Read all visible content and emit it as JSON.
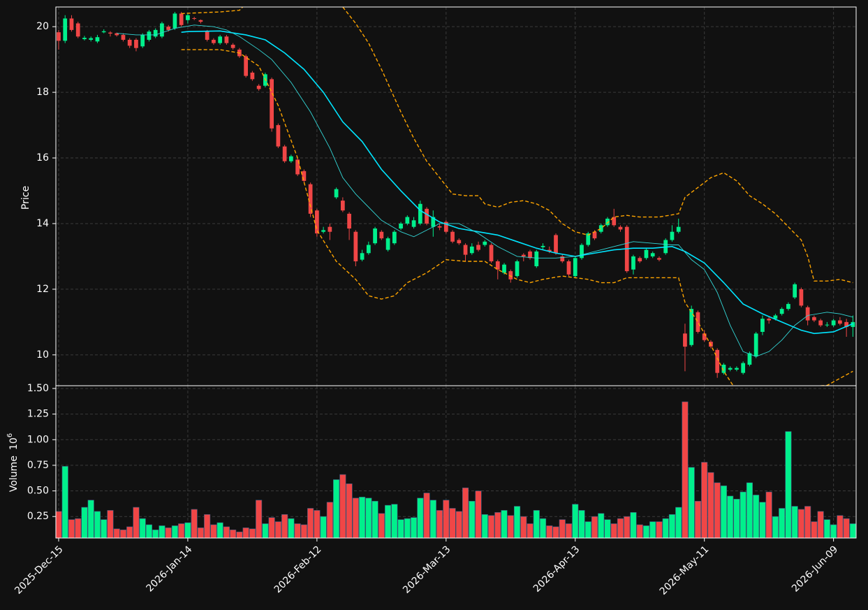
{
  "chart_data": [
    {
      "type": "candlestick",
      "ylabel": "Price",
      "up_color": "#00f08c",
      "down_color": "#f04646",
      "grid": true,
      "xlim": [
        -0.43,
        123.5
      ],
      "ylim": [
        9.06,
        20.6
      ],
      "yticks": [
        10,
        12,
        14,
        16,
        18,
        20
      ],
      "open": [
        19.83,
        19.57,
        20.25,
        20.1,
        19.62,
        19.6,
        19.55,
        19.83,
        19.82,
        19.8,
        19.75,
        19.6,
        19.6,
        19.4,
        19.6,
        19.7,
        19.7,
        20.0,
        19.95,
        20.4,
        20.2,
        20.26,
        20.2,
        19.85,
        19.6,
        19.5,
        19.7,
        19.45,
        19.3,
        19.1,
        18.6,
        18.2,
        18.2,
        18.4,
        17.0,
        16.35,
        15.9,
        15.95,
        15.6,
        15.2,
        14.4,
        13.75,
        13.9,
        14.8,
        14.7,
        14.3,
        13.75,
        12.9,
        13.1,
        13.4,
        13.75,
        13.2,
        13.4,
        13.85,
        14.0,
        13.9,
        14.0,
        14.45,
        13.9,
        13.92,
        14.05,
        13.75,
        13.5,
        13.35,
        13.1,
        13.35,
        13.35,
        13.35,
        12.85,
        12.5,
        12.55,
        12.4,
        13.05,
        13.15,
        12.7,
        13.28,
        13.2,
        13.65,
        13.0,
        12.85,
        12.4,
        12.95,
        13.35,
        13.75,
        13.75,
        13.95,
        14.2,
        13.9,
        13.9,
        12.6,
        12.95,
        12.95,
        13.0,
        12.95,
        13.1,
        13.5,
        13.75,
        10.65,
        10.3,
        11.3,
        10.65,
        10.4,
        10.15,
        9.45,
        9.55,
        9.55,
        9.45,
        9.7,
        9.95,
        10.7,
        11.1,
        11.1,
        11.25,
        11.4,
        11.75,
        12.0,
        11.45,
        11.15,
        11.05,
        10.9,
        10.9,
        11.05,
        11.0,
        10.85
      ],
      "high": [
        19.9,
        20.35,
        20.35,
        20.15,
        19.72,
        19.7,
        19.75,
        19.92,
        19.86,
        19.82,
        19.8,
        19.65,
        19.65,
        19.8,
        19.9,
        19.95,
        20.15,
        20.05,
        20.45,
        20.45,
        20.4,
        20.3,
        20.22,
        19.9,
        19.65,
        19.75,
        19.75,
        19.5,
        19.35,
        19.15,
        18.65,
        18.25,
        18.6,
        18.45,
        17.05,
        16.4,
        16.1,
        16.0,
        15.65,
        15.25,
        14.45,
        13.9,
        14.0,
        15.1,
        14.8,
        14.35,
        13.8,
        13.2,
        13.45,
        13.9,
        13.8,
        13.6,
        13.8,
        14.05,
        14.25,
        14.2,
        14.7,
        14.5,
        14.4,
        14.0,
        14.1,
        13.8,
        13.55,
        13.4,
        13.4,
        13.45,
        13.5,
        13.4,
        12.9,
        12.8,
        12.6,
        12.9,
        13.1,
        13.2,
        13.2,
        13.4,
        13.3,
        13.7,
        13.05,
        12.9,
        13.0,
        13.4,
        13.75,
        13.8,
        14.0,
        14.2,
        14.45,
        13.95,
        13.95,
        13.05,
        13.0,
        13.25,
        13.15,
        13.0,
        13.55,
        13.95,
        14.15,
        10.95,
        11.5,
        11.35,
        10.75,
        10.45,
        10.2,
        9.75,
        9.65,
        9.65,
        9.8,
        10.1,
        10.7,
        11.2,
        11.15,
        11.25,
        11.45,
        11.6,
        12.2,
        12.05,
        11.5,
        11.2,
        11.1,
        11.0,
        11.1,
        11.15,
        11.1,
        11.2
      ],
      "low": [
        19.3,
        19.5,
        19.85,
        19.65,
        19.58,
        19.55,
        19.5,
        19.8,
        19.7,
        19.7,
        19.55,
        19.35,
        19.25,
        19.35,
        19.55,
        19.65,
        19.65,
        19.85,
        19.9,
        20.0,
        20.1,
        20.2,
        20.1,
        19.55,
        19.45,
        19.45,
        19.45,
        19.3,
        19.05,
        18.45,
        18.35,
        18.05,
        18.15,
        16.8,
        16.3,
        15.85,
        15.85,
        15.45,
        15.25,
        14.2,
        13.6,
        13.7,
        13.5,
        14.75,
        14.35,
        13.5,
        12.7,
        12.85,
        13.05,
        13.35,
        13.5,
        13.15,
        13.35,
        13.8,
        13.95,
        13.85,
        13.95,
        13.95,
        13.6,
        13.8,
        13.7,
        13.4,
        13.35,
        12.85,
        13.05,
        13.15,
        13.3,
        12.8,
        12.3,
        12.45,
        12.2,
        12.35,
        12.85,
        12.9,
        12.65,
        13.2,
        13.1,
        13.05,
        12.8,
        12.4,
        12.35,
        12.9,
        13.3,
        13.5,
        13.7,
        13.9,
        13.9,
        13.75,
        12.5,
        12.45,
        12.8,
        12.9,
        12.95,
        12.85,
        13.05,
        13.45,
        13.7,
        9.5,
        10.25,
        10.65,
        10.4,
        10.2,
        9.3,
        9.4,
        9.5,
        9.5,
        9.4,
        9.65,
        9.9,
        10.6,
        10.95,
        11.05,
        11.2,
        11.35,
        11.7,
        11.45,
        10.9,
        11.0,
        10.85,
        10.85,
        10.85,
        10.9,
        10.55,
        10.55
      ],
      "close": [
        19.57,
        20.25,
        19.9,
        19.7,
        19.66,
        19.65,
        19.68,
        19.86,
        19.79,
        19.74,
        19.6,
        19.42,
        19.35,
        19.75,
        19.85,
        19.9,
        20.1,
        19.9,
        20.4,
        20.05,
        20.35,
        20.24,
        20.15,
        19.6,
        19.5,
        19.7,
        19.5,
        19.35,
        19.1,
        18.5,
        18.4,
        18.1,
        18.55,
        16.9,
        16.35,
        15.9,
        16.05,
        15.5,
        15.3,
        14.3,
        13.7,
        13.8,
        13.75,
        15.05,
        14.4,
        13.85,
        12.85,
        13.1,
        13.35,
        13.85,
        13.55,
        13.55,
        13.75,
        14.0,
        14.2,
        14.1,
        14.6,
        14.0,
        14.2,
        13.88,
        13.75,
        13.45,
        13.4,
        13.05,
        13.3,
        13.2,
        13.45,
        12.85,
        12.6,
        12.75,
        12.3,
        12.85,
        13.0,
        12.95,
        13.15,
        13.32,
        13.15,
        13.1,
        12.85,
        12.45,
        12.95,
        13.35,
        13.7,
        13.55,
        13.95,
        14.15,
        13.95,
        13.82,
        12.55,
        13.0,
        12.85,
        13.2,
        13.1,
        12.9,
        13.5,
        13.75,
        13.9,
        10.25,
        11.4,
        10.7,
        10.45,
        10.25,
        9.45,
        9.7,
        9.6,
        9.6,
        9.75,
        10.05,
        10.65,
        11.1,
        11.05,
        11.2,
        11.4,
        11.55,
        12.15,
        11.5,
        11.05,
        11.05,
        10.9,
        10.92,
        11.05,
        10.95,
        10.85,
        11.0
      ],
      "series": [
        {
          "color": "#00e5ff",
          "width": 1.6,
          "style": "solid",
          "x": [
            19,
            20,
            25,
            29,
            32,
            35,
            38,
            41,
            44,
            47,
            50,
            53,
            56,
            59,
            62,
            65,
            68,
            71,
            74,
            77,
            80,
            83,
            86,
            89,
            92,
            95,
            97,
            100,
            103,
            106,
            109,
            112,
            115,
            117,
            120,
            123
          ],
          "values": [
            19.83,
            19.85,
            19.87,
            19.75,
            19.6,
            19.2,
            18.7,
            18.0,
            17.1,
            16.5,
            15.65,
            15.0,
            14.4,
            14.05,
            13.85,
            13.75,
            13.65,
            13.45,
            13.25,
            13.1,
            13.0,
            13.1,
            13.2,
            13.25,
            13.25,
            13.3,
            13.15,
            12.8,
            12.2,
            11.55,
            11.25,
            11.0,
            10.75,
            10.65,
            10.7,
            10.95
          ]
        },
        {
          "color": "#33d6d6",
          "width": 0.9,
          "style": "solid",
          "x": [
            9,
            12,
            15,
            18,
            21,
            24,
            26,
            28,
            31,
            33,
            36,
            39,
            42,
            44,
            46,
            48,
            50,
            53,
            55,
            57,
            59,
            62,
            65,
            68,
            71,
            74,
            77,
            80,
            83,
            86,
            89,
            92,
            95,
            96,
            98,
            100,
            102,
            104,
            106,
            108,
            110,
            112,
            114,
            116,
            119,
            121,
            123
          ],
          "values": [
            19.8,
            19.75,
            19.75,
            19.95,
            20.05,
            20.0,
            19.9,
            19.7,
            19.3,
            19.0,
            18.3,
            17.4,
            16.3,
            15.4,
            14.9,
            14.5,
            14.1,
            13.75,
            13.6,
            13.8,
            14.0,
            14.0,
            13.7,
            13.3,
            13.0,
            12.95,
            12.95,
            13.0,
            13.15,
            13.3,
            13.45,
            13.4,
            13.35,
            13.35,
            12.9,
            12.6,
            11.9,
            10.9,
            10.1,
            9.95,
            10.1,
            10.45,
            10.9,
            11.2,
            11.3,
            11.25,
            11.15
          ]
        },
        {
          "color": "#ffa500",
          "width": 1.4,
          "style": "dashed",
          "x": [
            19,
            25,
            28,
            30,
            44,
            46,
            48,
            50,
            53,
            55,
            57,
            59,
            61,
            63,
            65,
            66,
            68,
            70,
            72,
            74,
            76,
            78,
            80,
            82,
            84,
            86,
            88,
            90,
            93,
            96,
            97,
            99,
            101,
            103,
            105,
            107,
            109,
            111,
            113,
            115,
            116,
            117,
            119,
            121,
            123
          ],
          "values": [
            20.4,
            20.45,
            20.5,
            20.9,
            20.6,
            20.1,
            19.5,
            18.7,
            17.4,
            16.6,
            15.9,
            15.4,
            14.9,
            14.85,
            14.85,
            14.6,
            14.5,
            14.65,
            14.7,
            14.6,
            14.4,
            14.0,
            13.75,
            13.65,
            13.85,
            14.2,
            14.25,
            14.2,
            14.2,
            14.3,
            14.8,
            15.1,
            15.4,
            15.55,
            15.3,
            14.85,
            14.6,
            14.3,
            13.9,
            13.5,
            13.0,
            12.25,
            12.25,
            12.3,
            12.2
          ]
        },
        {
          "color": "#ffa500",
          "width": 1.4,
          "style": "dashed",
          "x": [
            19,
            25,
            28,
            31,
            34,
            37,
            40,
            43,
            46,
            48,
            50,
            52,
            54,
            57,
            60,
            63,
            66,
            68,
            71,
            73,
            75,
            78,
            80,
            82,
            84,
            86,
            88,
            91,
            96,
            97,
            99,
            101,
            103,
            105,
            119,
            123
          ],
          "values": [
            19.3,
            19.3,
            19.2,
            18.8,
            17.6,
            16.0,
            13.8,
            12.85,
            12.3,
            11.8,
            11.7,
            11.8,
            12.2,
            12.5,
            12.9,
            12.85,
            12.85,
            12.6,
            12.3,
            12.2,
            12.3,
            12.4,
            12.35,
            12.3,
            12.2,
            12.2,
            12.35,
            12.35,
            12.35,
            11.6,
            11.0,
            10.3,
            9.5,
            8.9,
            9.07,
            9.5
          ]
        }
      ]
    },
    {
      "type": "volume",
      "ylabel": "Volume",
      "offset_base": "10",
      "offset_exponent": "6",
      "grid": true,
      "xlim": [
        -0.43,
        123.5
      ],
      "ylim": [
        0.04,
        1.527
      ],
      "yticks": [
        0.25,
        {
          "value": 0.5,
          "label": "0.50"
        },
        0.75,
        {
          "value": 1,
          "label": "1.00"
        },
        1.25,
        {
          "value": 1.5,
          "label": "1.50"
        }
      ],
      "categories": [
        "2025-Dec-15",
        null,
        null,
        null,
        null,
        null,
        null,
        null,
        null,
        null,
        null,
        null,
        null,
        null,
        null,
        null,
        null,
        null,
        null,
        null,
        "2026-Jan-14",
        null,
        null,
        null,
        null,
        null,
        null,
        null,
        null,
        null,
        null,
        null,
        null,
        null,
        null,
        null,
        null,
        null,
        null,
        null,
        "2026-Feb-12",
        null,
        null,
        null,
        null,
        null,
        null,
        null,
        null,
        null,
        null,
        null,
        null,
        null,
        null,
        null,
        null,
        null,
        null,
        null,
        "2026-Mar-13",
        null,
        null,
        null,
        null,
        null,
        null,
        null,
        null,
        null,
        null,
        null,
        null,
        null,
        null,
        null,
        null,
        null,
        null,
        null,
        "2026-Apr-13",
        null,
        null,
        null,
        null,
        null,
        null,
        null,
        null,
        null,
        null,
        null,
        null,
        null,
        null,
        null,
        null,
        null,
        null,
        null,
        "2026-May-11",
        null,
        null,
        null,
        null,
        null,
        null,
        null,
        null,
        null,
        null,
        null,
        null,
        null,
        null,
        null,
        null,
        null,
        null,
        null,
        "2026-Jun-09",
        null,
        null,
        null
      ],
      "values": [
        0.3,
        0.74,
        0.22,
        0.23,
        0.34,
        0.41,
        0.3,
        0.22,
        0.31,
        0.13,
        0.12,
        0.15,
        0.34,
        0.23,
        0.17,
        0.12,
        0.16,
        0.14,
        0.16,
        0.18,
        0.19,
        0.32,
        0.14,
        0.27,
        0.17,
        0.19,
        0.15,
        0.12,
        0.1,
        0.14,
        0.13,
        0.41,
        0.18,
        0.24,
        0.2,
        0.27,
        0.23,
        0.18,
        0.17,
        0.33,
        0.31,
        0.25,
        0.39,
        0.61,
        0.66,
        0.57,
        0.43,
        0.44,
        0.43,
        0.4,
        0.28,
        0.36,
        0.37,
        0.22,
        0.23,
        0.24,
        0.43,
        0.48,
        0.41,
        0.31,
        0.41,
        0.33,
        0.3,
        0.53,
        0.4,
        0.5,
        0.27,
        0.26,
        0.29,
        0.31,
        0.26,
        0.35,
        0.25,
        0.18,
        0.31,
        0.23,
        0.16,
        0.15,
        0.22,
        0.18,
        0.37,
        0.31,
        0.2,
        0.25,
        0.28,
        0.22,
        0.18,
        0.23,
        0.25,
        0.29,
        0.17,
        0.16,
        0.2,
        0.2,
        0.23,
        0.27,
        0.34,
        1.37,
        0.73,
        0.4,
        0.78,
        0.68,
        0.58,
        0.55,
        0.45,
        0.42,
        0.49,
        0.58,
        0.46,
        0.39,
        0.49,
        0.25,
        0.33,
        1.08,
        0.35,
        0.32,
        0.35,
        0.2,
        0.3,
        0.22,
        0.17,
        0.26,
        0.23,
        0.18
      ]
    }
  ]
}
